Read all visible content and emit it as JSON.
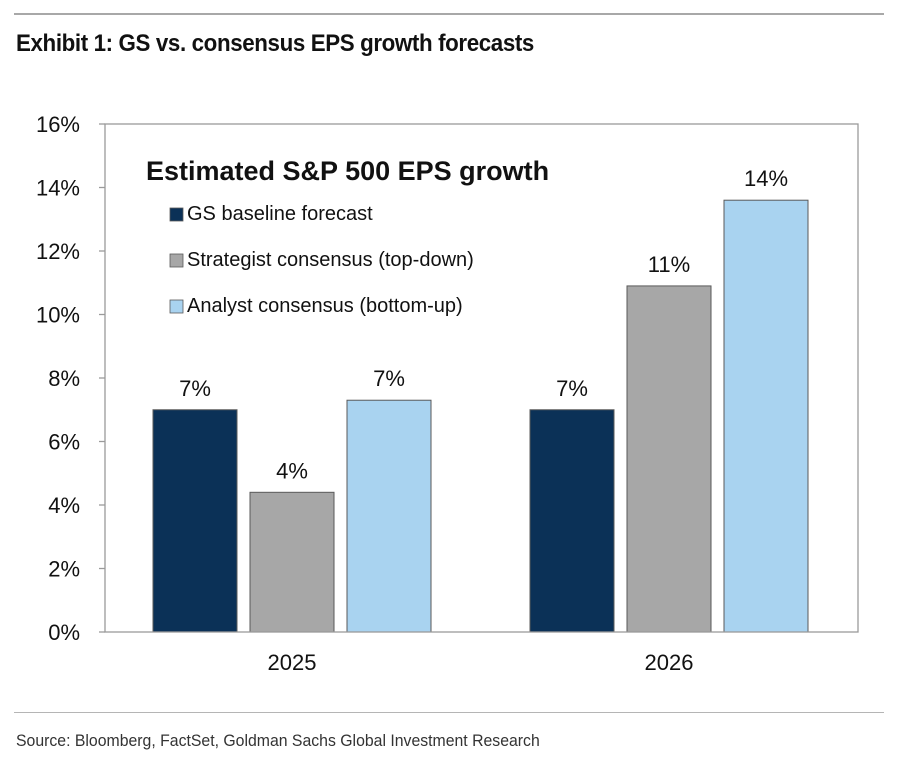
{
  "exhibit": {
    "title": "Exhibit 1: GS vs. consensus EPS growth forecasts",
    "source": "Source: Bloomberg, FactSet, Goldman Sachs Global Investment Research"
  },
  "chart_data": {
    "type": "bar",
    "title": "Estimated S&P 500 EPS growth",
    "xlabel": "",
    "ylabel": "",
    "categories": [
      "2025",
      "2026"
    ],
    "ylim": [
      0,
      16
    ],
    "yticks": [
      0,
      2,
      4,
      6,
      8,
      10,
      12,
      14,
      16
    ],
    "ytick_labels": [
      "0%",
      "2%",
      "4%",
      "6%",
      "8%",
      "10%",
      "12%",
      "14%",
      "16%"
    ],
    "grid": false,
    "legend_position": "top-left inside plot",
    "series": [
      {
        "name": "GS baseline forecast",
        "color": "#0b3157",
        "values": [
          7.0,
          7.0
        ],
        "labels": [
          "7%",
          "7%"
        ]
      },
      {
        "name": "Strategist consensus (top-down)",
        "color": "#a7a7a7",
        "values": [
          4.4,
          10.9
        ],
        "labels": [
          "4%",
          "11%"
        ]
      },
      {
        "name": "Analyst consensus (bottom-up)",
        "color": "#a9d3f0",
        "values": [
          7.3,
          13.6
        ],
        "labels": [
          "7%",
          "14%"
        ]
      }
    ]
  }
}
